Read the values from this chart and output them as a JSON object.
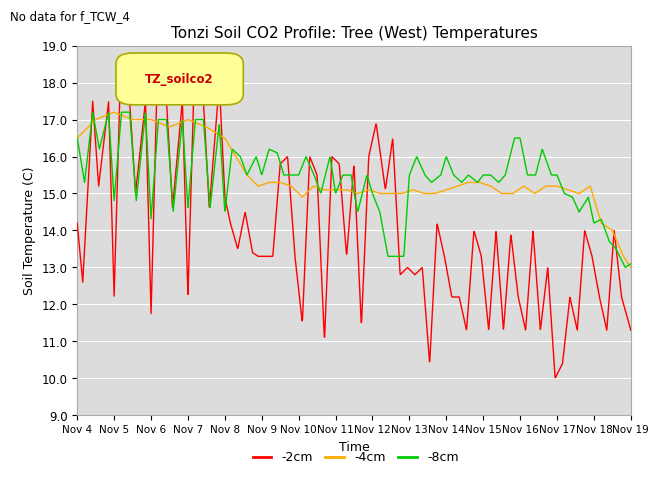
{
  "title": "Tonzi Soil CO2 Profile: Tree (West) Temperatures",
  "subtitle": "No data for f_TCW_4",
  "ylabel": "Soil Temperature (C)",
  "xlabel": "Time",
  "ylim": [
    9.0,
    19.0
  ],
  "yticks": [
    9.0,
    10.0,
    11.0,
    12.0,
    13.0,
    14.0,
    15.0,
    16.0,
    17.0,
    18.0,
    19.0
  ],
  "xtick_labels": [
    "Nov 4",
    "Nov 5",
    "Nov 6",
    "Nov 7",
    "Nov 8",
    "Nov 9",
    "Nov 10",
    "Nov 11",
    "Nov 12",
    "Nov 13",
    "Nov 14",
    "Nov 15",
    "Nov 16",
    "Nov 17",
    "Nov 18",
    "Nov 19"
  ],
  "legend_labels": [
    "-2cm",
    "-4cm",
    "-8cm"
  ],
  "legend_colors": [
    "#ff0000",
    "#ffaa00",
    "#00cc00"
  ],
  "bg_color": "#e8e8e8",
  "plot_bg_color": "#dcdcdc",
  "grid_color": "#ffffff",
  "box_color": "#ffff99",
  "box_text": "TZ_soilco2",
  "line_width": 1.0,
  "n_days": 15,
  "red_t": [
    0.0,
    0.15,
    0.42,
    0.58,
    0.85,
    1.0,
    1.15,
    1.42,
    1.58,
    1.85,
    2.0,
    2.15,
    2.42,
    2.58,
    2.85,
    3.0,
    3.15,
    3.42,
    3.58,
    3.85,
    4.0,
    4.15,
    4.35,
    4.55,
    4.75,
    4.9,
    5.1,
    5.3,
    5.5,
    5.7,
    5.9,
    6.1,
    6.3,
    6.5,
    6.7,
    6.9,
    7.1,
    7.3,
    7.5,
    7.7,
    7.9,
    8.1,
    8.35,
    8.55,
    8.75,
    8.95,
    9.15,
    9.35,
    9.55,
    9.75,
    9.95,
    10.15,
    10.35,
    10.55,
    10.75,
    10.95,
    11.15,
    11.35,
    11.55,
    11.75,
    11.95,
    12.15,
    12.35,
    12.55,
    12.75,
    12.95,
    13.15,
    13.35,
    13.55,
    13.75,
    13.95,
    14.15,
    14.35,
    14.55,
    14.75,
    15.0
  ],
  "red_v": [
    14.2,
    12.6,
    17.5,
    15.2,
    17.5,
    12.2,
    17.5,
    17.5,
    15.0,
    17.5,
    11.7,
    17.5,
    17.5,
    14.6,
    17.5,
    12.2,
    17.5,
    17.5,
    14.6,
    18.0,
    14.9,
    14.2,
    13.5,
    14.5,
    13.4,
    13.3,
    13.3,
    13.3,
    15.8,
    16.0,
    13.3,
    11.5,
    16.0,
    15.5,
    11.0,
    16.0,
    15.8,
    13.3,
    15.8,
    11.4,
    16.0,
    16.9,
    15.1,
    16.5,
    12.8,
    13.0,
    12.8,
    13.0,
    10.4,
    14.2,
    13.3,
    12.2,
    12.2,
    11.3,
    14.0,
    13.3,
    11.3,
    14.0,
    11.3,
    13.9,
    12.2,
    11.3,
    14.0,
    11.3,
    13.0,
    10.0,
    10.4,
    12.2,
    11.3,
    14.0,
    13.3,
    12.2,
    11.3,
    14.0,
    12.2,
    11.3
  ],
  "orange_t": [
    0.0,
    0.5,
    1.0,
    1.5,
    2.0,
    2.5,
    3.0,
    3.5,
    4.0,
    4.3,
    4.6,
    4.9,
    5.2,
    5.5,
    5.8,
    6.1,
    6.4,
    6.7,
    7.0,
    7.3,
    7.6,
    7.9,
    8.2,
    8.5,
    8.8,
    9.1,
    9.4,
    9.7,
    10.0,
    10.3,
    10.6,
    10.9,
    11.2,
    11.5,
    11.8,
    12.1,
    12.4,
    12.7,
    13.0,
    13.3,
    13.6,
    13.9,
    14.2,
    14.5,
    14.8,
    15.0
  ],
  "orange_v": [
    16.5,
    17.0,
    17.2,
    17.0,
    17.0,
    16.8,
    17.0,
    16.8,
    16.5,
    16.0,
    15.5,
    15.2,
    15.3,
    15.3,
    15.2,
    14.9,
    15.2,
    15.1,
    15.1,
    15.1,
    15.0,
    15.1,
    15.0,
    15.0,
    15.0,
    15.1,
    15.0,
    15.0,
    15.1,
    15.2,
    15.3,
    15.3,
    15.2,
    15.0,
    15.0,
    15.2,
    15.0,
    15.2,
    15.2,
    15.1,
    15.0,
    15.2,
    14.2,
    14.0,
    13.3,
    13.0
  ],
  "green_t": [
    0.0,
    0.2,
    0.42,
    0.6,
    0.85,
    1.0,
    1.2,
    1.42,
    1.6,
    1.85,
    2.0,
    2.2,
    2.42,
    2.6,
    2.85,
    3.0,
    3.2,
    3.42,
    3.6,
    3.85,
    4.0,
    4.2,
    4.42,
    4.6,
    4.85,
    5.0,
    5.2,
    5.42,
    5.6,
    5.85,
    6.0,
    6.2,
    6.42,
    6.6,
    6.85,
    7.0,
    7.2,
    7.42,
    7.6,
    7.85,
    8.0,
    8.2,
    8.42,
    8.6,
    8.85,
    9.0,
    9.2,
    9.42,
    9.6,
    9.85,
    10.0,
    10.2,
    10.42,
    10.6,
    10.85,
    11.0,
    11.2,
    11.42,
    11.6,
    11.85,
    12.0,
    12.2,
    12.42,
    12.6,
    12.85,
    13.0,
    13.2,
    13.42,
    13.6,
    13.85,
    14.0,
    14.2,
    14.42,
    14.6,
    14.85,
    15.0
  ],
  "green_v": [
    16.5,
    15.3,
    17.2,
    16.2,
    17.2,
    14.8,
    17.2,
    17.2,
    14.8,
    17.2,
    14.3,
    17.0,
    17.0,
    14.5,
    17.0,
    14.6,
    17.0,
    17.0,
    14.6,
    16.9,
    14.5,
    16.2,
    16.0,
    15.5,
    16.0,
    15.5,
    16.2,
    16.1,
    15.5,
    15.5,
    15.5,
    16.0,
    15.5,
    15.0,
    16.0,
    15.0,
    15.5,
    15.5,
    14.5,
    15.5,
    15.0,
    14.5,
    13.3,
    13.3,
    13.3,
    15.5,
    16.0,
    15.5,
    15.3,
    15.5,
    16.0,
    15.5,
    15.3,
    15.5,
    15.3,
    15.5,
    15.5,
    15.3,
    15.5,
    16.5,
    16.5,
    15.5,
    15.5,
    16.2,
    15.5,
    15.5,
    15.0,
    14.9,
    14.5,
    14.9,
    14.2,
    14.3,
    13.7,
    13.5,
    13.0,
    13.1
  ]
}
